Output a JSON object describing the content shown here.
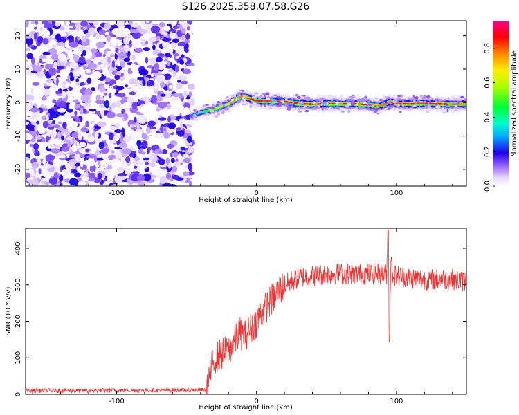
{
  "title": "S126.2025.358.07.58.G26",
  "chart_data": [
    {
      "type": "heatmap",
      "xlabel": "Height of straight line (km)",
      "ylabel": "Frequency (Hz)",
      "xlim": [
        -165,
        150
      ],
      "ylim": [
        -25,
        24.5
      ],
      "xticks": [
        -100,
        0,
        100
      ],
      "yticks": [
        -20,
        -10,
        0,
        10,
        20
      ],
      "colorbar": {
        "label": "Normalized spectral amplitude",
        "range": [
          0,
          0.96
        ],
        "ticks": [
          0.0,
          0.2,
          0.4,
          0.6,
          0.8
        ]
      },
      "noise_region_x": [
        -165,
        -46
      ],
      "ridge": {
        "x": [
          -46,
          -40,
          -35,
          -30,
          -25,
          -20,
          -15,
          -10,
          -5,
          0,
          10,
          20,
          30,
          40,
          50,
          60,
          70,
          80,
          85,
          90,
          95,
          100,
          110,
          120,
          130,
          140,
          150
        ],
        "freq": [
          -4,
          -3,
          -2.5,
          -2,
          -1,
          -0.5,
          1,
          2,
          1.2,
          0.5,
          0.4,
          0.3,
          -0.3,
          -0.5,
          -0.3,
          -0.4,
          -0.4,
          -0.6,
          -1,
          -0.8,
          0.2,
          -0.3,
          -0.4,
          -0.3,
          -0.4,
          -0.5,
          -0.4
        ],
        "amp": [
          0.3,
          0.4,
          0.5,
          0.6,
          0.7,
          0.7,
          0.8,
          0.8,
          0.85,
          0.9,
          0.95,
          0.95,
          0.9,
          0.95,
          0.9,
          0.95,
          0.9,
          0.9,
          0.8,
          0.85,
          0.95,
          0.9,
          0.9,
          0.85,
          0.9,
          0.85,
          0.85
        ]
      }
    },
    {
      "type": "line",
      "xlabel": "Height of straight line (km)",
      "ylabel": "SNR (10 * v/v)",
      "xlim": [
        -165,
        150
      ],
      "ylim": [
        0,
        455
      ],
      "xticks": [
        -100,
        0,
        100
      ],
      "yticks": [
        0,
        100,
        200,
        300,
        400
      ],
      "color": "#ee3333",
      "series": [
        {
          "name": "SNR",
          "x": [
            -165,
            -120,
            -80,
            -50,
            -36,
            -33,
            -30,
            -25,
            -20,
            -15,
            -12,
            -10,
            -5,
            0,
            5,
            10,
            15,
            20,
            25,
            30,
            40,
            50,
            60,
            70,
            80,
            90,
            93,
            94,
            95,
            96,
            97,
            100,
            110,
            120,
            130,
            140,
            150
          ],
          "values": [
            10,
            10,
            11,
            11,
            12,
            60,
            100,
            110,
            120,
            150,
            170,
            160,
            175,
            200,
            230,
            255,
            280,
            300,
            310,
            320,
            325,
            330,
            330,
            330,
            330,
            330,
            330,
            450,
            150,
            380,
            330,
            325,
            320,
            315,
            315,
            315,
            310
          ]
        }
      ]
    }
  ]
}
